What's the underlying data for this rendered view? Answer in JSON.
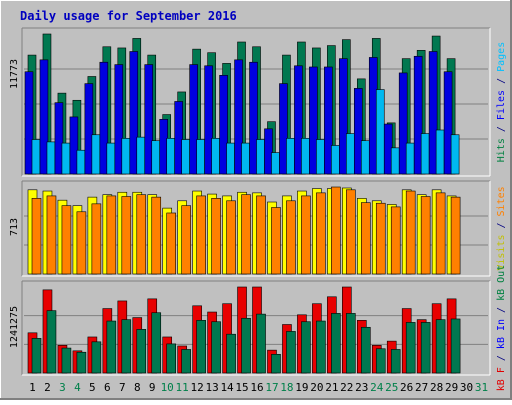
{
  "chart_data": {
    "type": "bar",
    "title": "Daily usage for September 2016",
    "categories": [
      "1",
      "2",
      "3",
      "4",
      "5",
      "6",
      "7",
      "8",
      "9",
      "10",
      "11",
      "12",
      "13",
      "14",
      "15",
      "16",
      "17",
      "18",
      "19",
      "20",
      "21",
      "22",
      "23",
      "24",
      "25",
      "26",
      "27",
      "28",
      "29",
      "30",
      "31"
    ],
    "weekend_days": [
      "3",
      "4",
      "10",
      "11",
      "17",
      "18",
      "24",
      "25",
      "31"
    ],
    "panels": [
      {
        "id": "top",
        "max_label": "11773",
        "ylim": [
          0,
          11773
        ],
        "right_label": [
          {
            "text": "Hits",
            "color": "#008040"
          },
          {
            "text": " / ",
            "color": "#000080"
          },
          {
            "text": "Files",
            "color": "#0000ff"
          },
          {
            "text": " / ",
            "color": "#000080"
          },
          {
            "text": "Pages",
            "color": "#00c0ff"
          }
        ],
        "series": [
          {
            "name": "Hits",
            "color": "#007850",
            "values": [
              10000,
              11773,
              6800,
              6200,
              8200,
              10700,
              10600,
              11400,
              10000,
              5000,
              6900,
              10500,
              10200,
              9300,
              11100,
              10700,
              4400,
              10000,
              11100,
              10600,
              10800,
              11300,
              8000,
              11400,
              4300,
              9700,
              10400,
              11600,
              9700,
              0,
              0
            ]
          },
          {
            "name": "Files",
            "color": "#0000e0",
            "values": [
              8600,
              9600,
              6000,
              4800,
              7600,
              9400,
              9200,
              10300,
              9200,
              4600,
              6100,
              9200,
              9100,
              8300,
              9600,
              9400,
              3800,
              7600,
              9100,
              9000,
              9000,
              9700,
              7200,
              9800,
              4200,
              8500,
              9900,
              10300,
              8600,
              0,
              0
            ]
          },
          {
            "name": "Pages",
            "color": "#00b8f0",
            "values": [
              2900,
              2700,
              2600,
              2000,
              3300,
              2600,
              3000,
              3100,
              2800,
              3000,
              2900,
              2900,
              3000,
              2600,
              2600,
              2900,
              1800,
              3000,
              3000,
              2900,
              2400,
              3400,
              2800,
              7100,
              2200,
              2600,
              3400,
              3700,
              3300,
              0,
              0
            ]
          }
        ]
      },
      {
        "id": "middle",
        "max_label": "713",
        "ylim": [
          0,
          713
        ],
        "right_label": [
          {
            "text": "Visits",
            "color": "#c0c000"
          },
          {
            "text": " / ",
            "color": "#000080"
          },
          {
            "text": "Sites",
            "color": "#ff8000"
          }
        ],
        "series": [
          {
            "name": "Visits",
            "color": "#ffff00",
            "values": [
              690,
              680,
              605,
              560,
              630,
              650,
              670,
              670,
              650,
              540,
              600,
              680,
              655,
              640,
              670,
              665,
              590,
              640,
              680,
              700,
              700,
              705,
              620,
              600,
              570,
              690,
              650,
              690,
              640,
              0,
              0
            ]
          },
          {
            "name": "Sites",
            "color": "#ff8000",
            "values": [
              620,
              640,
              560,
              510,
              575,
              640,
              635,
              650,
              630,
              500,
              560,
              640,
              620,
              600,
              650,
              640,
              545,
              600,
              640,
              665,
              713,
              690,
              585,
              580,
              550,
              680,
              635,
              665,
              630,
              0,
              0
            ]
          }
        ]
      },
      {
        "id": "bottom",
        "max_label": "1241275",
        "ylim": [
          0,
          1241275
        ],
        "right_label": [
          {
            "text": "kB F",
            "color": "#e00000"
          },
          {
            "text": " / ",
            "color": "#000080"
          },
          {
            "text": "kB In",
            "color": "#0000ff"
          },
          {
            "text": " / ",
            "color": "#000080"
          },
          {
            "text": "kB Out",
            "color": "#008040"
          }
        ],
        "series": [
          {
            "name": "kB F",
            "color": "#e80000",
            "values": [
              580000,
              1200000,
              400000,
              320000,
              520000,
              930000,
              1040000,
              800000,
              1070000,
              520000,
              390000,
              970000,
              880000,
              1000000,
              1241275,
              1241275,
              330000,
              700000,
              840000,
              1000000,
              1100000,
              1241275,
              760000,
              400000,
              460000,
              930000,
              770000,
              1000000,
              1070000,
              0,
              0
            ]
          },
          {
            "name": "kB Out",
            "color": "#007850",
            "values": [
              500000,
              900000,
              360000,
              300000,
              450000,
              750000,
              770000,
              630000,
              870000,
              420000,
              340000,
              760000,
              740000,
              560000,
              790000,
              850000,
              270000,
              600000,
              740000,
              750000,
              860000,
              860000,
              660000,
              350000,
              340000,
              730000,
              730000,
              770000,
              780000,
              0,
              0
            ]
          },
          {
            "name": "kB In",
            "color": "#0000ff",
            "values": [
              0,
              0,
              0,
              0,
              0,
              0,
              0,
              0,
              0,
              0,
              0,
              0,
              0,
              0,
              0,
              0,
              0,
              0,
              0,
              0,
              0,
              0,
              0,
              0,
              0,
              0,
              0,
              0,
              0,
              0,
              0
            ]
          }
        ]
      }
    ],
    "colors": {
      "background": "#c0c0c0",
      "plot_background": "#c0c0c0",
      "weekday_label": "#000000",
      "weekend_label": "#00804a",
      "title": "#0000c0",
      "max_label": "#000000"
    }
  }
}
